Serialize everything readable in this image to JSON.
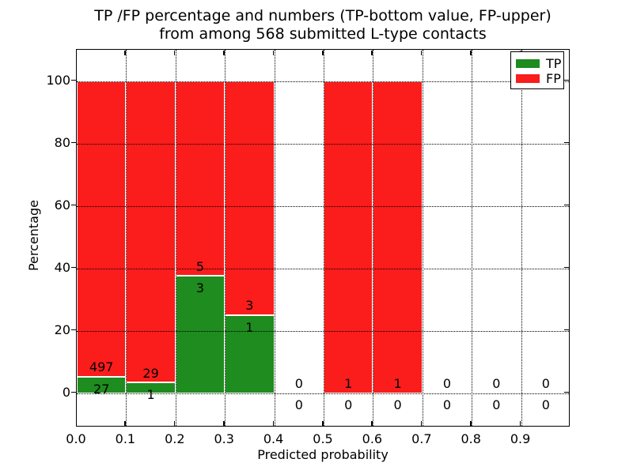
{
  "figure": {
    "title_line1": "TP /FP percentage and numbers (TP-bottom value, FP-upper)",
    "title_line2": "from among 568 submitted L-type contacts"
  },
  "chart_data": {
    "type": "bar",
    "stacked": true,
    "title": "TP /FP percentage and numbers (TP-bottom value, FP-upper)\nfrom among 568 submitted L-type contacts",
    "xlabel": "Predicted probability",
    "ylabel": "Percentage",
    "total_submitted": 568,
    "xlim": [
      0.0,
      1.0
    ],
    "ylim": [
      -11,
      110
    ],
    "grid": true,
    "x_ticks": [
      {
        "value": 0.0,
        "label": "0.0"
      },
      {
        "value": 0.1,
        "label": "0.1"
      },
      {
        "value": 0.2,
        "label": "0.2"
      },
      {
        "value": 0.3,
        "label": "0.3"
      },
      {
        "value": 0.4,
        "label": "0.4"
      },
      {
        "value": 0.5,
        "label": "0.5"
      },
      {
        "value": 0.6,
        "label": "0.6"
      },
      {
        "value": 0.7,
        "label": "0.7"
      },
      {
        "value": 0.8,
        "label": "0.8"
      },
      {
        "value": 0.9,
        "label": "0.9"
      }
    ],
    "y_ticks": [
      {
        "value": 0,
        "label": "0"
      },
      {
        "value": 20,
        "label": "20"
      },
      {
        "value": 40,
        "label": "40"
      },
      {
        "value": 60,
        "label": "60"
      },
      {
        "value": 80,
        "label": "80"
      },
      {
        "value": 100,
        "label": "100"
      }
    ],
    "bins": [
      {
        "x0": 0.0,
        "x1": 0.1,
        "tp": 27,
        "fp": 497
      },
      {
        "x0": 0.1,
        "x1": 0.2,
        "tp": 1,
        "fp": 29
      },
      {
        "x0": 0.2,
        "x1": 0.3,
        "tp": 3,
        "fp": 5
      },
      {
        "x0": 0.3,
        "x1": 0.4,
        "tp": 1,
        "fp": 3
      },
      {
        "x0": 0.4,
        "x1": 0.5,
        "tp": 0,
        "fp": 0
      },
      {
        "x0": 0.5,
        "x1": 0.6,
        "tp": 0,
        "fp": 1
      },
      {
        "x0": 0.6,
        "x1": 0.7,
        "tp": 0,
        "fp": 1
      },
      {
        "x0": 0.7,
        "x1": 0.8,
        "tp": 0,
        "fp": 0
      },
      {
        "x0": 0.8,
        "x1": 0.9,
        "tp": 0,
        "fp": 0
      },
      {
        "x0": 0.9,
        "x1": 1.0,
        "tp": 0,
        "fp": 0
      }
    ],
    "legend": {
      "position": "upper right",
      "entries": [
        {
          "label": "TP",
          "color": "#1e8c1e"
        },
        {
          "label": "FP",
          "color": "#fb1c1c"
        }
      ]
    },
    "colors": {
      "tp": "#1e8c1e",
      "fp": "#fb1c1c",
      "grid": "#000000",
      "text": "#000000",
      "spine": "#000000",
      "background": "#ffffff"
    }
  }
}
